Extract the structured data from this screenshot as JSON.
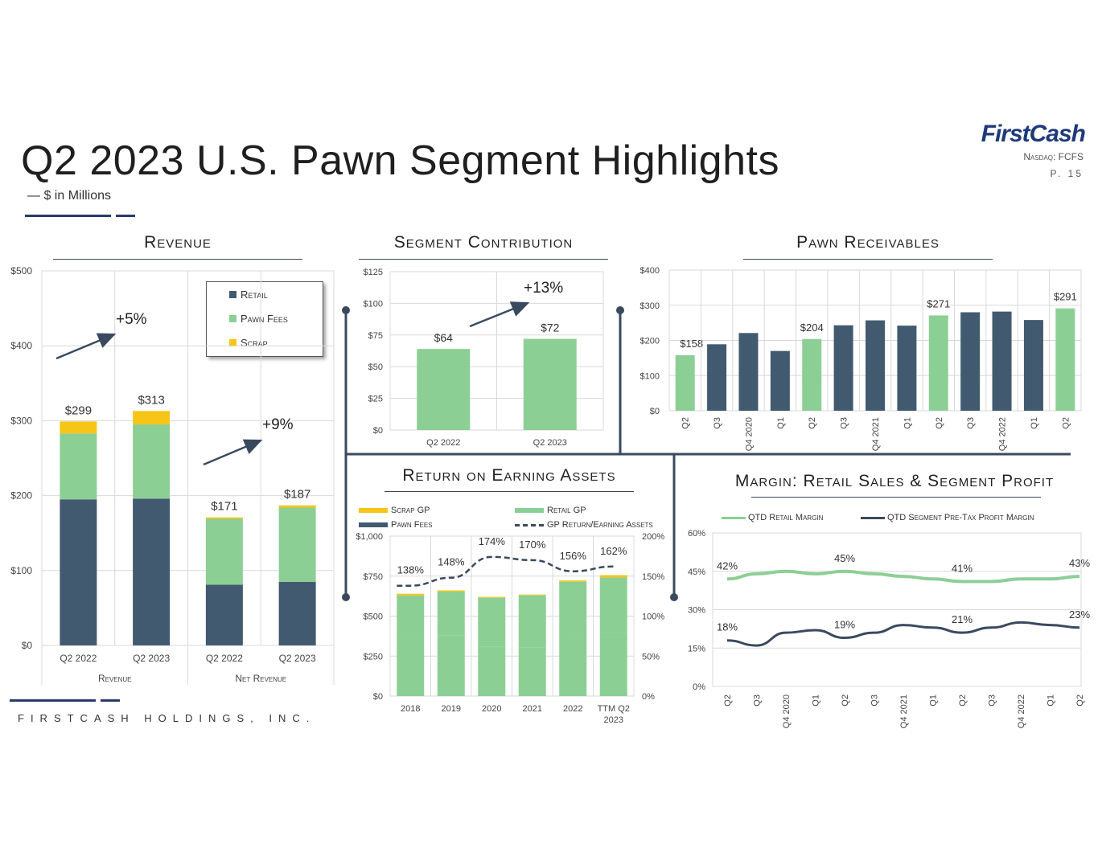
{
  "header": {
    "title": "Q2 2023 U.S. Pawn Segment Highlights",
    "subtitle": "— $ in Millions",
    "logo": "FirstCash",
    "ticker": "Nasdaq: FCFS",
    "page": "P. 15",
    "footer": "FIRSTCASH HOLDINGS, INC."
  },
  "colors": {
    "retail": "#415a70",
    "pawn": "#8ccf95",
    "scrap": "#f5c518",
    "line_dark": "#3a4a5e"
  },
  "chart_data": [
    {
      "id": "revenue",
      "type": "bar",
      "stacked": true,
      "title": "Revenue",
      "categories": [
        "Q2 2022",
        "Q2 2023",
        "Q2 2022",
        "Q2 2023"
      ],
      "groups": [
        "Revenue",
        "Net Revenue"
      ],
      "series": [
        {
          "name": "Retail",
          "values": [
            195,
            196,
            81,
            85
          ]
        },
        {
          "name": "Pawn Fees",
          "values": [
            88,
            99,
            88,
            99
          ]
        },
        {
          "name": "Scrap",
          "values": [
            16,
            18,
            2,
            3
          ]
        }
      ],
      "totals": [
        "$299",
        "$313",
        "$171",
        "$187"
      ],
      "annotations": [
        "+5%",
        "+9%"
      ],
      "yticks": [
        "$0",
        "$100",
        "$200",
        "$300",
        "$400",
        "$500"
      ],
      "ylim": [
        0,
        500
      ]
    },
    {
      "id": "segment_contribution",
      "type": "bar",
      "title": "Segment Contribution",
      "categories": [
        "Q2 2022",
        "Q2 2023"
      ],
      "values": [
        64,
        72
      ],
      "labels": [
        "$64",
        "$72"
      ],
      "annotation": "+13%",
      "yticks": [
        "$0",
        "$25",
        "$50",
        "$75",
        "$100",
        "$125"
      ],
      "ylim": [
        0,
        125
      ]
    },
    {
      "id": "pawn_receivables",
      "type": "bar",
      "title": "Pawn Receivables",
      "categories": [
        "Q2",
        "Q3",
        "Q4 2020",
        "Q1",
        "Q2",
        "Q3",
        "Q4 2021",
        "Q1",
        "Q2",
        "Q3",
        "Q4 2022",
        "Q1",
        "Q2"
      ],
      "values": [
        158,
        189,
        221,
        170,
        204,
        243,
        257,
        242,
        271,
        280,
        282,
        258,
        291
      ],
      "highlight": [
        true,
        false,
        false,
        false,
        true,
        false,
        false,
        false,
        true,
        false,
        false,
        false,
        true
      ],
      "labels": [
        "$158",
        "",
        "",
        "",
        "$204",
        "",
        "",
        "",
        "$271",
        "",
        "",
        "",
        "$291"
      ],
      "yticks": [
        "$0",
        "$100",
        "$200",
        "$300",
        "$400"
      ],
      "ylim": [
        0,
        400
      ]
    },
    {
      "id": "return_on_earning_assets",
      "type": "bar",
      "stacked": true,
      "title": "Return on Earning Assets",
      "categories": [
        "2018",
        "2019",
        "2020",
        "2021",
        "2022",
        "TTM Q2 2023"
      ],
      "series": [
        {
          "name": "Pawn Fees",
          "values": [
            372,
            378,
            310,
            305,
            372,
            395
          ]
        },
        {
          "name": "Retail GP",
          "values": [
            258,
            275,
            305,
            325,
            343,
            347
          ]
        },
        {
          "name": "Scrap GP",
          "values": [
            10,
            8,
            5,
            5,
            8,
            14
          ]
        }
      ],
      "line": {
        "name": "GP Return/Earning Assets",
        "values": [
          138,
          148,
          174,
          170,
          156,
          162
        ],
        "labels": [
          "138%",
          "148%",
          "174%",
          "170%",
          "156%",
          "162%"
        ]
      },
      "yticks_left": [
        "$0",
        "$250",
        "$500",
        "$750",
        "$1,000"
      ],
      "yticks_right": [
        "0%",
        "50%",
        "100%",
        "150%",
        "200%"
      ],
      "ylim": [
        0,
        1000
      ],
      "y2lim": [
        0,
        200
      ]
    },
    {
      "id": "margin",
      "type": "line",
      "title": "Margin: Retail Sales & Segment Profit",
      "categories": [
        "Q2",
        "Q3",
        "Q4 2020",
        "Q1",
        "Q2",
        "Q3",
        "Q4 2021",
        "Q1",
        "Q2",
        "Q3",
        "Q4 2022",
        "Q1",
        "Q2"
      ],
      "series": [
        {
          "name": "QTD Retail Margin",
          "values": [
            42,
            44,
            45,
            44,
            45,
            44,
            43,
            42,
            41,
            41,
            42,
            42,
            43
          ]
        },
        {
          "name": "QTD Segment Pre-Tax Profit Margin",
          "values": [
            18,
            16,
            21,
            22,
            19,
            21,
            24,
            23,
            21,
            23,
            25,
            24,
            23
          ]
        }
      ],
      "labels_retail": [
        "42%",
        "",
        "",
        "",
        "45%",
        "",
        "",
        "",
        "41%",
        "",
        "",
        "",
        "43%"
      ],
      "labels_profit": [
        "18%",
        "",
        "",
        "",
        "19%",
        "",
        "",
        "",
        "21%",
        "",
        "",
        "",
        "23%"
      ],
      "yticks": [
        "0%",
        "15%",
        "30%",
        "45%",
        "60%"
      ],
      "ylim": [
        0,
        60
      ]
    }
  ]
}
